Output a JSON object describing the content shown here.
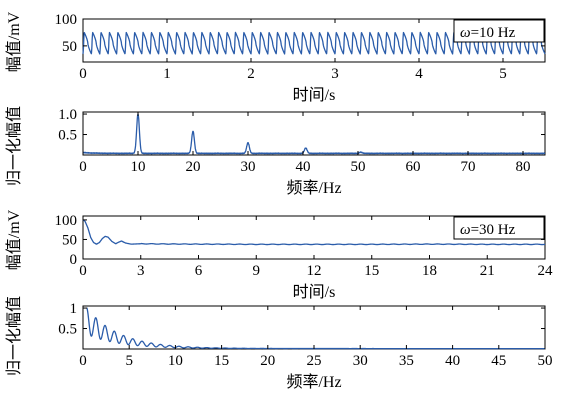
{
  "figure": {
    "trace_color": "#2a5caa",
    "frame_color": "#000000"
  },
  "chart_data": [
    {
      "type": "line",
      "name": "time-10hz",
      "xlabel": "时间/s",
      "ylabel": "幅值/mV",
      "xlim": [
        0,
        5.5
      ],
      "ylim": [
        20,
        100
      ],
      "xticks": [
        0,
        1,
        2,
        3,
        4,
        5
      ],
      "yticks": [
        50,
        100
      ],
      "legend": {
        "text": "=10 Hz",
        "symbol": "ω",
        "placement": "top-right"
      },
      "signal": {
        "kind": "periodic",
        "frequency_hz": 10,
        "peak": 75,
        "trough": 35,
        "x": [
          0,
          5.5
        ]
      }
    },
    {
      "type": "line",
      "name": "spectrum-10hz",
      "xlabel": "频率/Hz",
      "ylabel": "归一化幅值",
      "xlim": [
        0,
        84
      ],
      "ylim": [
        0,
        1.05
      ],
      "xticks": [
        0,
        10,
        20,
        30,
        40,
        50,
        60,
        70,
        80
      ],
      "yticks": [
        0.5,
        1.0
      ],
      "ytick_labels": [
        "0.5",
        "1.0"
      ],
      "baseline": 0.04,
      "peaks": [
        {
          "x": 10,
          "y": 1.0
        },
        {
          "x": 20,
          "y": 0.58
        },
        {
          "x": 30,
          "y": 0.3
        },
        {
          "x": 40.5,
          "y": 0.17
        },
        {
          "x": 50.5,
          "y": 0.07
        }
      ]
    },
    {
      "type": "line",
      "name": "time-30hz",
      "xlabel": "时间/s",
      "ylabel": "幅值/mV",
      "xlim": [
        0,
        24
      ],
      "ylim": [
        0,
        110
      ],
      "xticks": [
        0,
        3,
        6,
        9,
        12,
        15,
        18,
        21,
        24
      ],
      "yticks": [
        0,
        50,
        100
      ],
      "legend": {
        "text": "=30 Hz",
        "symbol": "ω",
        "placement": "top-right"
      },
      "points": [
        [
          0,
          100
        ],
        [
          0.1,
          97
        ],
        [
          0.25,
          80
        ],
        [
          0.4,
          55
        ],
        [
          0.55,
          42
        ],
        [
          0.7,
          38
        ],
        [
          0.85,
          42
        ],
        [
          1.0,
          52
        ],
        [
          1.15,
          58
        ],
        [
          1.3,
          56
        ],
        [
          1.5,
          45
        ],
        [
          1.7,
          39
        ],
        [
          1.85,
          43
        ],
        [
          2.0,
          46
        ],
        [
          2.2,
          41
        ],
        [
          2.5,
          38
        ],
        [
          3,
          39
        ],
        [
          4,
          38.5
        ],
        [
          6,
          38
        ],
        [
          9,
          37.5
        ],
        [
          12,
          37.5
        ],
        [
          15,
          37.5
        ],
        [
          18,
          38
        ],
        [
          21,
          37.5
        ],
        [
          24,
          37.5
        ]
      ]
    },
    {
      "type": "line",
      "name": "spectrum-30hz",
      "xlabel": "频率/Hz",
      "ylabel": "归一化幅值",
      "xlim": [
        0,
        50
      ],
      "ylim": [
        0,
        1.05
      ],
      "xticks": [
        0,
        5,
        10,
        15,
        20,
        25,
        30,
        35,
        40,
        45,
        50
      ],
      "yticks": [
        0.5,
        1.0
      ],
      "ytick_labels": [
        "0.5",
        "1"
      ],
      "curve": {
        "kind": "decaying",
        "start_x": 0.4,
        "start_y": 1.0,
        "decay_scale": 3.5,
        "ripple_period": 1.0,
        "floor": 0.01
      }
    }
  ]
}
